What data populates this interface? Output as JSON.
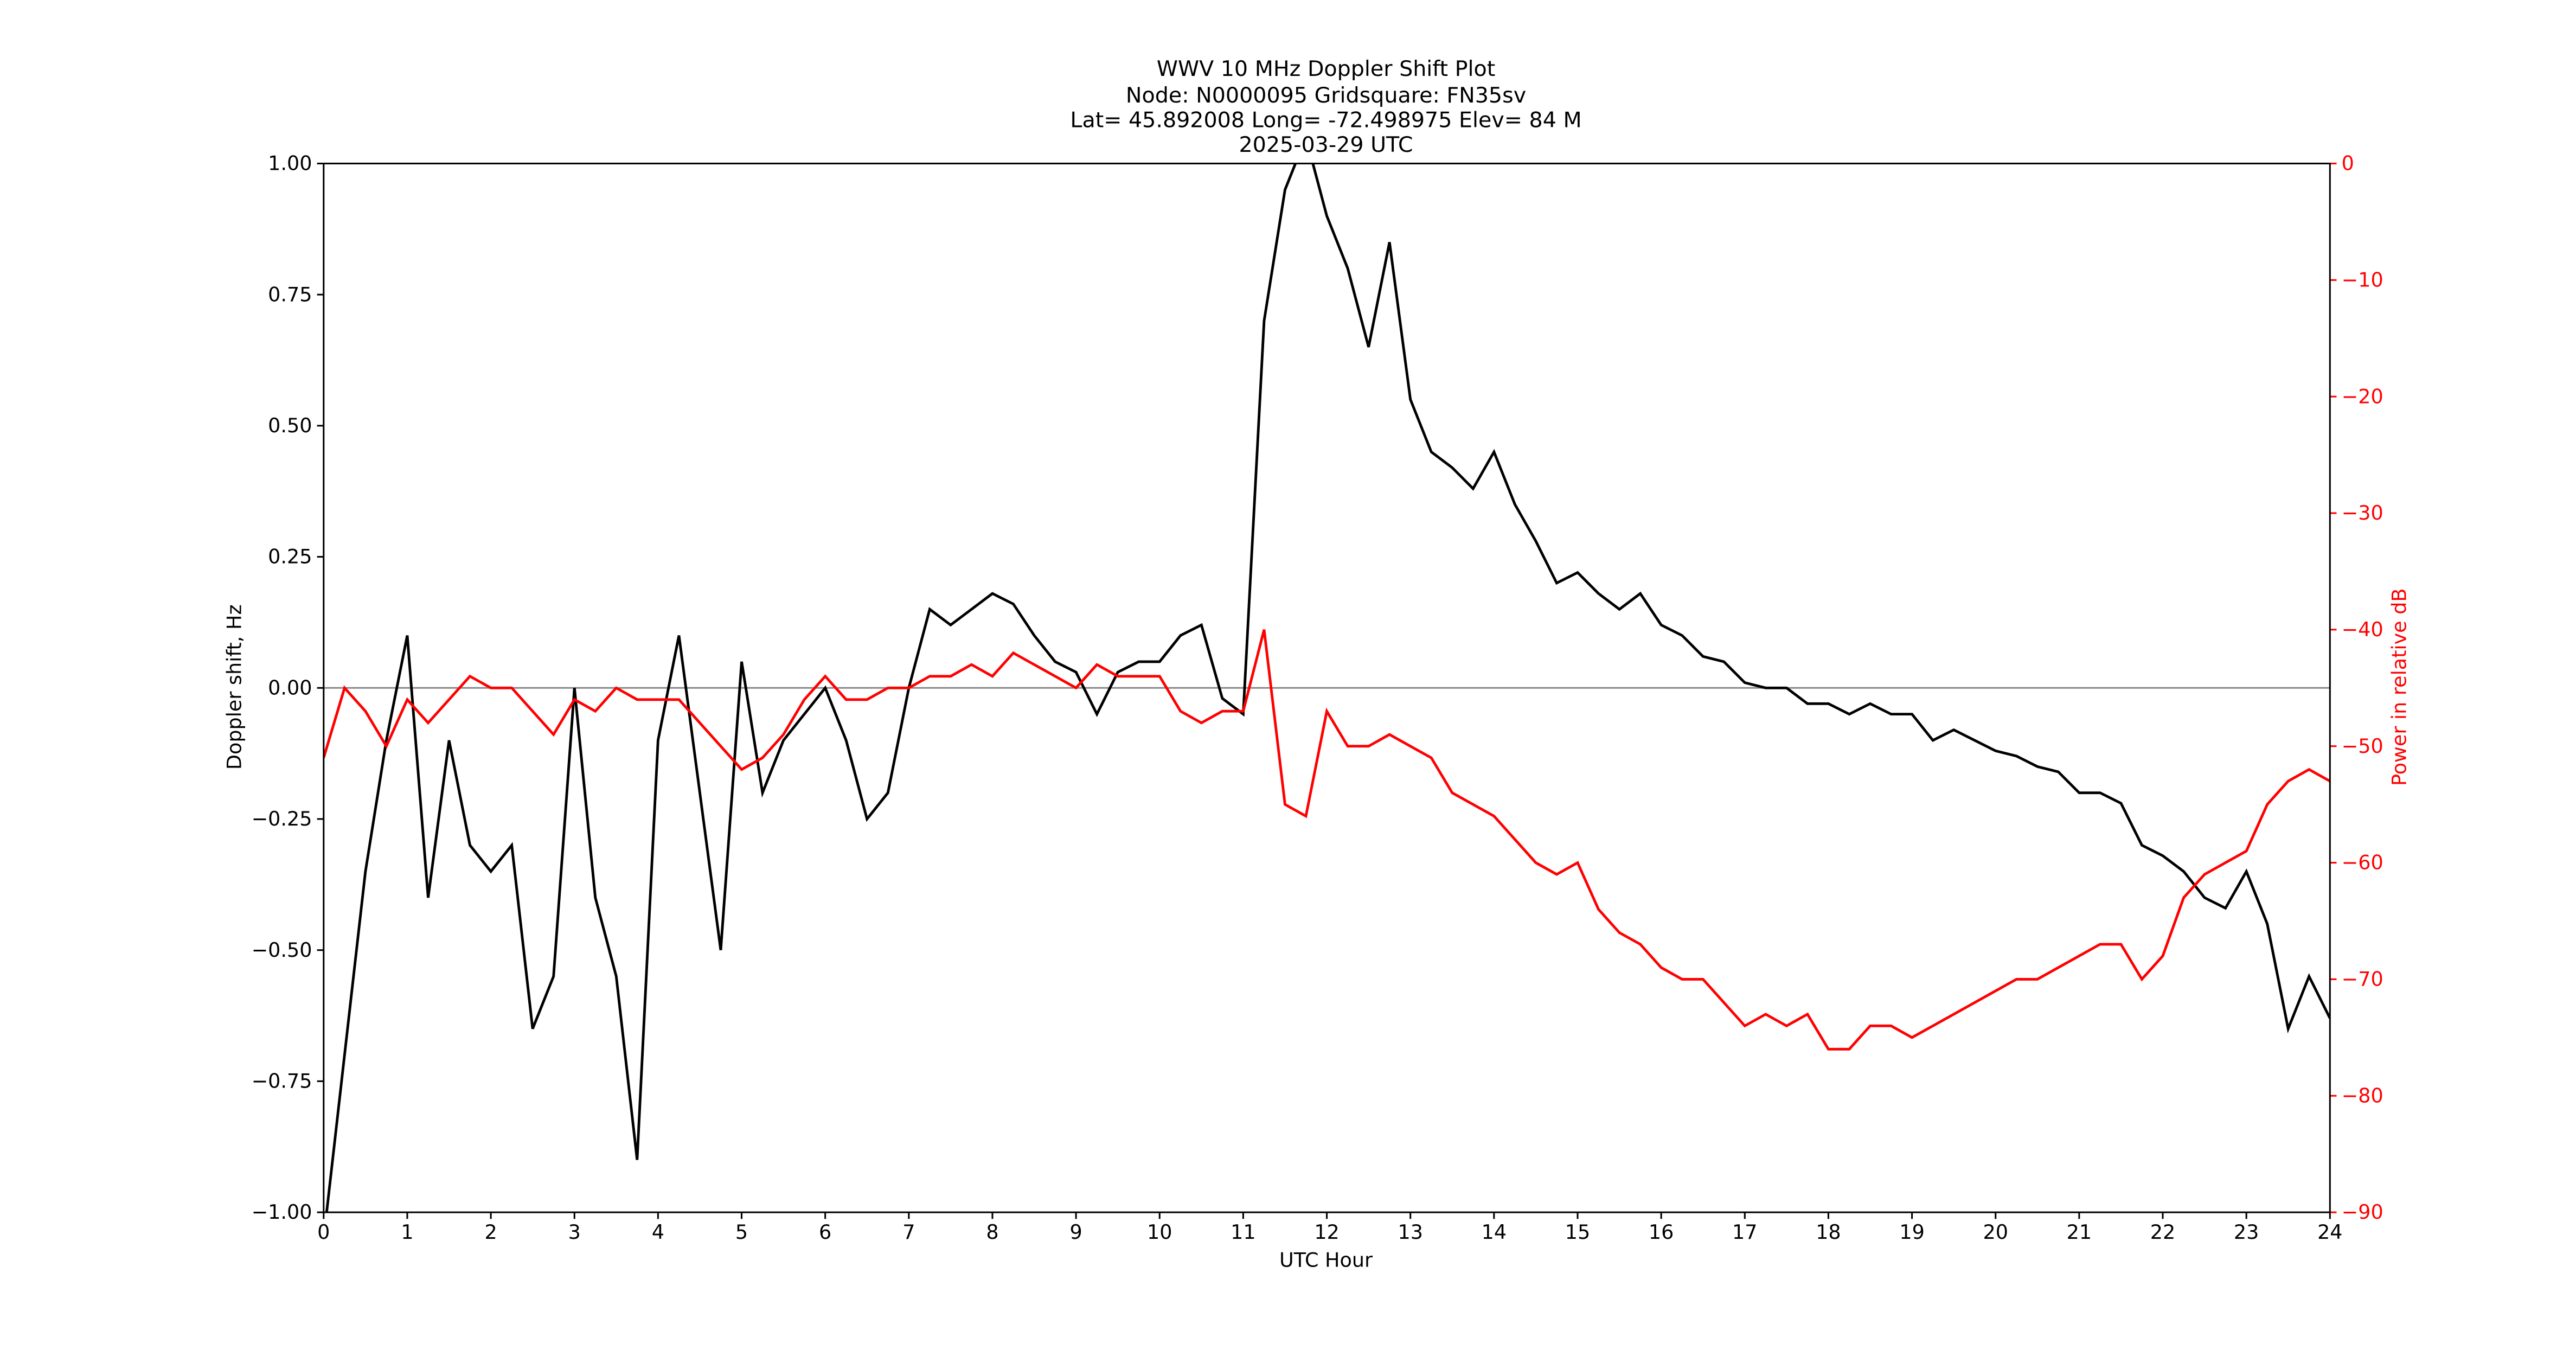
{
  "chart_data": {
    "type": "line",
    "title": "WWV 10 MHz Doppler Shift Plot",
    "subtitle_lines": [
      "Node:  N0000095     Gridsquare:  FN35sv",
      "Lat= 45.892008    Long= -72.498975    Elev= 84 M",
      "2025-03-29  UTC"
    ],
    "xlabel": "UTC Hour",
    "ylabel": "Doppler shift, Hz",
    "y2label": "Power in relative dB",
    "y2label_color": "#ff0000",
    "xlim": [
      0,
      24
    ],
    "xticks": [
      0,
      1,
      2,
      3,
      4,
      5,
      6,
      7,
      8,
      9,
      10,
      11,
      12,
      13,
      14,
      15,
      16,
      17,
      18,
      19,
      20,
      21,
      22,
      23,
      24
    ],
    "ylim": [
      -1,
      1
    ],
    "yticks": [
      {
        "value": -1,
        "label": "−1.00"
      },
      {
        "value": -0.75,
        "label": "−0.75"
      },
      {
        "value": -0.5,
        "label": "−0.50"
      },
      {
        "value": -0.25,
        "label": "−0.25"
      },
      {
        "value": 0,
        "label": "0.00"
      },
      {
        "value": 0.25,
        "label": "0.25"
      },
      {
        "value": 0.5,
        "label": "0.50"
      },
      {
        "value": 0.75,
        "label": "0.75"
      },
      {
        "value": 1,
        "label": "1.00"
      }
    ],
    "y2lim": [
      -90,
      0
    ],
    "y2ticks": [
      {
        "value": -90,
        "label": "−90"
      },
      {
        "value": -80,
        "label": "−80"
      },
      {
        "value": -70,
        "label": "−70"
      },
      {
        "value": -60,
        "label": "−60"
      },
      {
        "value": -50,
        "label": "−50"
      },
      {
        "value": -40,
        "label": "−40"
      },
      {
        "value": -30,
        "label": "−30"
      },
      {
        "value": -20,
        "label": "−20"
      },
      {
        "value": -10,
        "label": "−10"
      },
      0
    ],
    "reference_line": {
      "y": 0,
      "color": "#888888"
    },
    "x": [
      0,
      0.25,
      0.5,
      0.75,
      1,
      1.25,
      1.5,
      1.75,
      2,
      2.25,
      2.5,
      2.75,
      3,
      3.25,
      3.5,
      3.75,
      4,
      4.25,
      4.5,
      4.75,
      5,
      5.25,
      5.5,
      5.75,
      6,
      6.25,
      6.5,
      6.75,
      7,
      7.25,
      7.5,
      7.75,
      8,
      8.25,
      8.5,
      8.75,
      9,
      9.25,
      9.5,
      9.75,
      10,
      10.25,
      10.5,
      10.75,
      11,
      11.25,
      11.5,
      11.75,
      12,
      12.25,
      12.5,
      12.75,
      13,
      13.25,
      13.5,
      13.75,
      14,
      14.25,
      14.5,
      14.75,
      15,
      15.25,
      15.5,
      15.75,
      16,
      16.25,
      16.5,
      16.75,
      17,
      17.25,
      17.5,
      17.75,
      18,
      18.25,
      18.5,
      18.75,
      19,
      19.25,
      19.5,
      19.75,
      20,
      20.25,
      20.5,
      20.75,
      21,
      21.25,
      21.5,
      21.75,
      22,
      22.25,
      22.5,
      22.75,
      23,
      23.25,
      23.5,
      23.75,
      24
    ],
    "series": [
      {
        "color": "#000000",
        "axis": "y",
        "values": [
          -1.05,
          -0.7,
          -0.35,
          -0.1,
          0.1,
          -0.4,
          -0.1,
          -0.3,
          -0.35,
          -0.3,
          -0.65,
          -0.55,
          0.0,
          -0.4,
          -0.55,
          -0.9,
          -0.1,
          0.1,
          -0.2,
          -0.5,
          0.05,
          -0.2,
          -0.1,
          -0.05,
          0.0,
          -0.1,
          -0.25,
          -0.2,
          0.0,
          0.15,
          0.12,
          0.15,
          0.18,
          0.16,
          0.1,
          0.05,
          0.03,
          -0.05,
          0.03,
          0.05,
          0.05,
          0.1,
          0.12,
          -0.02,
          -0.05,
          0.7,
          0.95,
          1.05,
          0.9,
          0.8,
          0.65,
          0.85,
          0.55,
          0.45,
          0.42,
          0.38,
          0.45,
          0.35,
          0.28,
          0.2,
          0.22,
          0.18,
          0.15,
          0.18,
          0.12,
          0.1,
          0.06,
          0.05,
          0.01,
          0.0,
          0.0,
          -0.03,
          -0.03,
          -0.05,
          -0.03,
          -0.05,
          -0.05,
          -0.1,
          -0.08,
          -0.1,
          -0.12,
          -0.13,
          -0.15,
          -0.16,
          -0.2,
          -0.2,
          -0.22,
          -0.3,
          -0.32,
          -0.35,
          -0.4,
          -0.42,
          -0.35,
          -0.45,
          -0.65,
          -0.55,
          -0.63
        ]
      },
      {
        "color": "#ff0000",
        "axis": "y2",
        "values": [
          -51,
          -45,
          -47,
          -50,
          -46,
          -48,
          -46,
          -44,
          -45,
          -45,
          -47,
          -49,
          -46,
          -47,
          -45,
          -46,
          -46,
          -46,
          -48,
          -50,
          -52,
          -51,
          -49,
          -46,
          -44,
          -46,
          -46,
          -45,
          -45,
          -44,
          -44,
          -43,
          -44,
          -42,
          -43,
          -44,
          -45,
          -43,
          -44,
          -44,
          -44,
          -47,
          -48,
          -47,
          -47,
          -40,
          -55,
          -56,
          -47,
          -50,
          -50,
          -49,
          -50,
          -51,
          -54,
          -55,
          -56,
          -58,
          -60,
          -61,
          -60,
          -64,
          -66,
          -67,
          -69,
          -70,
          -70,
          -72,
          -74,
          -73,
          -74,
          -73,
          -76,
          -76,
          -74,
          -74,
          -75,
          -74,
          -73,
          -72,
          -71,
          -70,
          -70,
          -69,
          -68,
          -67,
          -67,
          -70,
          -68,
          -63,
          -61,
          -60,
          -59,
          -55,
          -53,
          -52,
          -53
        ]
      }
    ]
  }
}
